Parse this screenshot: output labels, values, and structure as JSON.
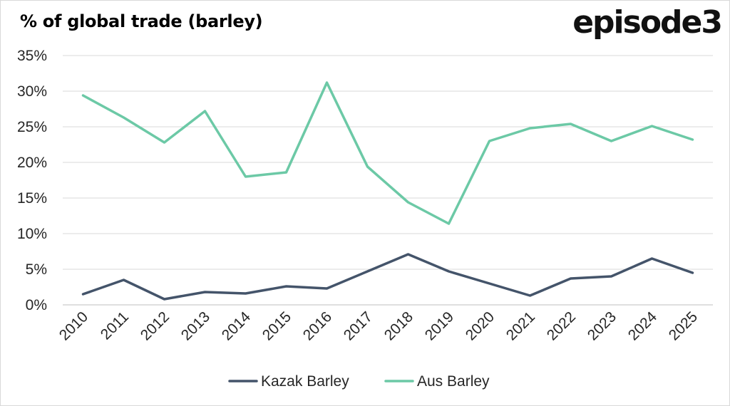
{
  "title": "% of global trade (barley)",
  "logo": "episode3",
  "chart_data": {
    "type": "line",
    "title": "% of global trade (barley)",
    "x": [
      "2010",
      "2011",
      "2012",
      "2013",
      "2014",
      "2015",
      "2016",
      "2017",
      "2018",
      "2019",
      "2020",
      "2021",
      "2022",
      "2023",
      "2024",
      "2025"
    ],
    "ylim": [
      0,
      35
    ],
    "yticks": [
      0,
      5,
      10,
      15,
      20,
      25,
      30,
      35
    ],
    "ytick_labels": [
      "0%",
      "5%",
      "10%",
      "15%",
      "20%",
      "25%",
      "30%",
      "35%"
    ],
    "grid": true,
    "legend_position": "bottom",
    "series": [
      {
        "name": "Kazak Barley",
        "color": "#44546a",
        "values": [
          1.5,
          3.5,
          0.8,
          1.8,
          1.6,
          2.6,
          2.3,
          4.7,
          7.1,
          4.7,
          3.0,
          1.3,
          3.7,
          4.0,
          6.5,
          4.5
        ]
      },
      {
        "name": "Aus Barley",
        "color": "#6cc9a6",
        "values": [
          29.4,
          26.3,
          22.8,
          27.2,
          18.0,
          18.6,
          31.2,
          19.4,
          14.4,
          11.4,
          23.0,
          24.8,
          25.4,
          23.0,
          25.1,
          23.2
        ]
      }
    ]
  }
}
